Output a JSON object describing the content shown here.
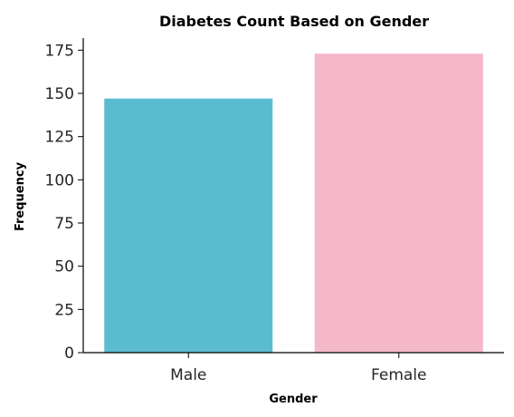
{
  "chart_data": {
    "type": "bar",
    "title": "Diabetes Count Based on Gender",
    "xlabel": "Gender",
    "ylabel": "Frequency",
    "categories": [
      "Male",
      "Female"
    ],
    "values": [
      147,
      173
    ],
    "colors": [
      "#5bbcd1",
      "#f4b8c8"
    ],
    "ylim": [
      0,
      182
    ],
    "yticks": [
      0,
      25,
      50,
      75,
      100,
      125,
      150,
      175
    ],
    "grid": false
  }
}
